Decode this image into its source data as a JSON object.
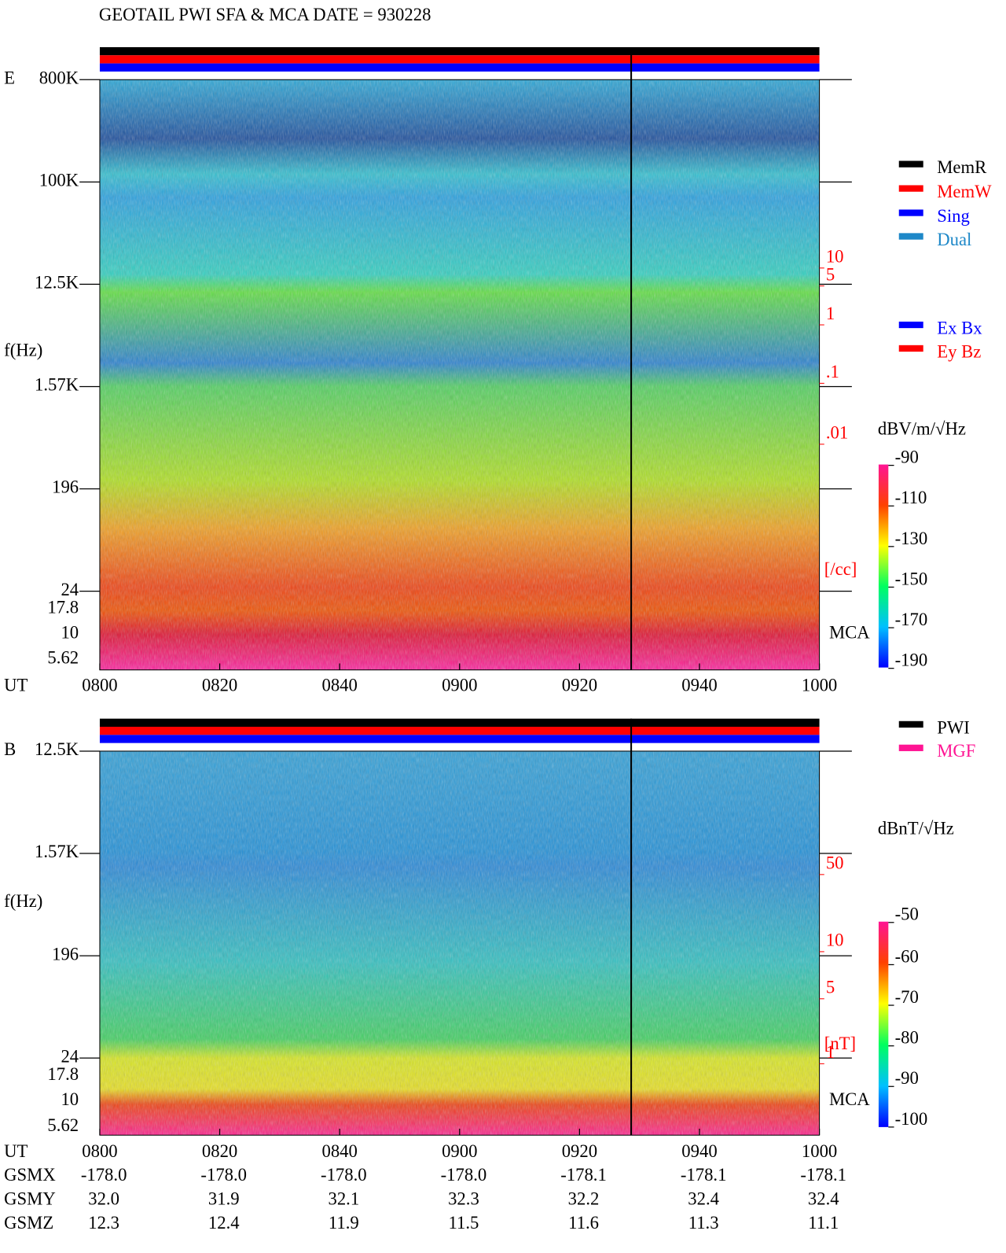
{
  "title": "GEOTAIL   PWI SFA & MCA   DATE = 930228",
  "panels": [
    {
      "label": "E",
      "y_axis_label": "f(Hz)",
      "freq_ticks": [
        "800K",
        "100K",
        "12.5K",
        "1.57K",
        "196",
        "24",
        "17.8",
        "10",
        "5.62"
      ],
      "density_ticks": [
        "10",
        "5",
        "1",
        ".1",
        ".01"
      ],
      "density_unit": "[/cc]",
      "mca_label": "MCA",
      "time_label": "UT",
      "time_ticks": [
        "0800",
        "0820",
        "0840",
        "0900",
        "0920",
        "0940",
        "1000"
      ],
      "colorbar_unit": "dBV/m/√Hz",
      "colorbar_ticks": [
        "-90",
        "-110",
        "-130",
        "-150",
        "-170",
        "-190"
      ]
    },
    {
      "label": "B",
      "y_axis_label": "f(Hz)",
      "freq_ticks": [
        "12.5K",
        "1.57K",
        "196",
        "24",
        "17.8",
        "10",
        "5.62"
      ],
      "density_ticks": [
        "50",
        "10",
        "5",
        "1"
      ],
      "density_unit": "[nT]",
      "mca_label": "MCA",
      "time_label": "UT",
      "time_ticks": [
        "0800",
        "0820",
        "0840",
        "0900",
        "0920",
        "0940",
        "1000"
      ],
      "colorbar_unit": "dBnT/√Hz",
      "colorbar_ticks": [
        "-50",
        "-60",
        "-70",
        "-80",
        "-90",
        "-100"
      ]
    }
  ],
  "status_legend": [
    {
      "label": "MemR",
      "color": "#000000"
    },
    {
      "label": "MemW",
      "color": "#ff0000"
    },
    {
      "label": "Sing",
      "color": "#0000ff"
    },
    {
      "label": "Dual",
      "color": "#1e88c8"
    }
  ],
  "channel_legend": [
    {
      "label": "Ex Bx",
      "color": "#0000ff"
    },
    {
      "label": "Ey Bz",
      "color": "#ff0000"
    }
  ],
  "source_legend": [
    {
      "label": "PWI",
      "color": "#000000"
    },
    {
      "label": "MGF",
      "color": "#ff1493"
    }
  ],
  "orbit": [
    {
      "name": "GSMX",
      "values": [
        "-178.0",
        "-178.0",
        "-178.0",
        "-178.0",
        "-178.1",
        "-178.1",
        "-178.1"
      ]
    },
    {
      "name": "GSMY",
      "values": [
        "32.0",
        "31.9",
        "32.1",
        "32.3",
        "32.2",
        "32.4",
        "32.4"
      ]
    },
    {
      "name": "GSMZ",
      "values": [
        "12.3",
        "12.4",
        "11.9",
        "11.5",
        "11.6",
        "11.3",
        "11.1"
      ]
    }
  ]
}
